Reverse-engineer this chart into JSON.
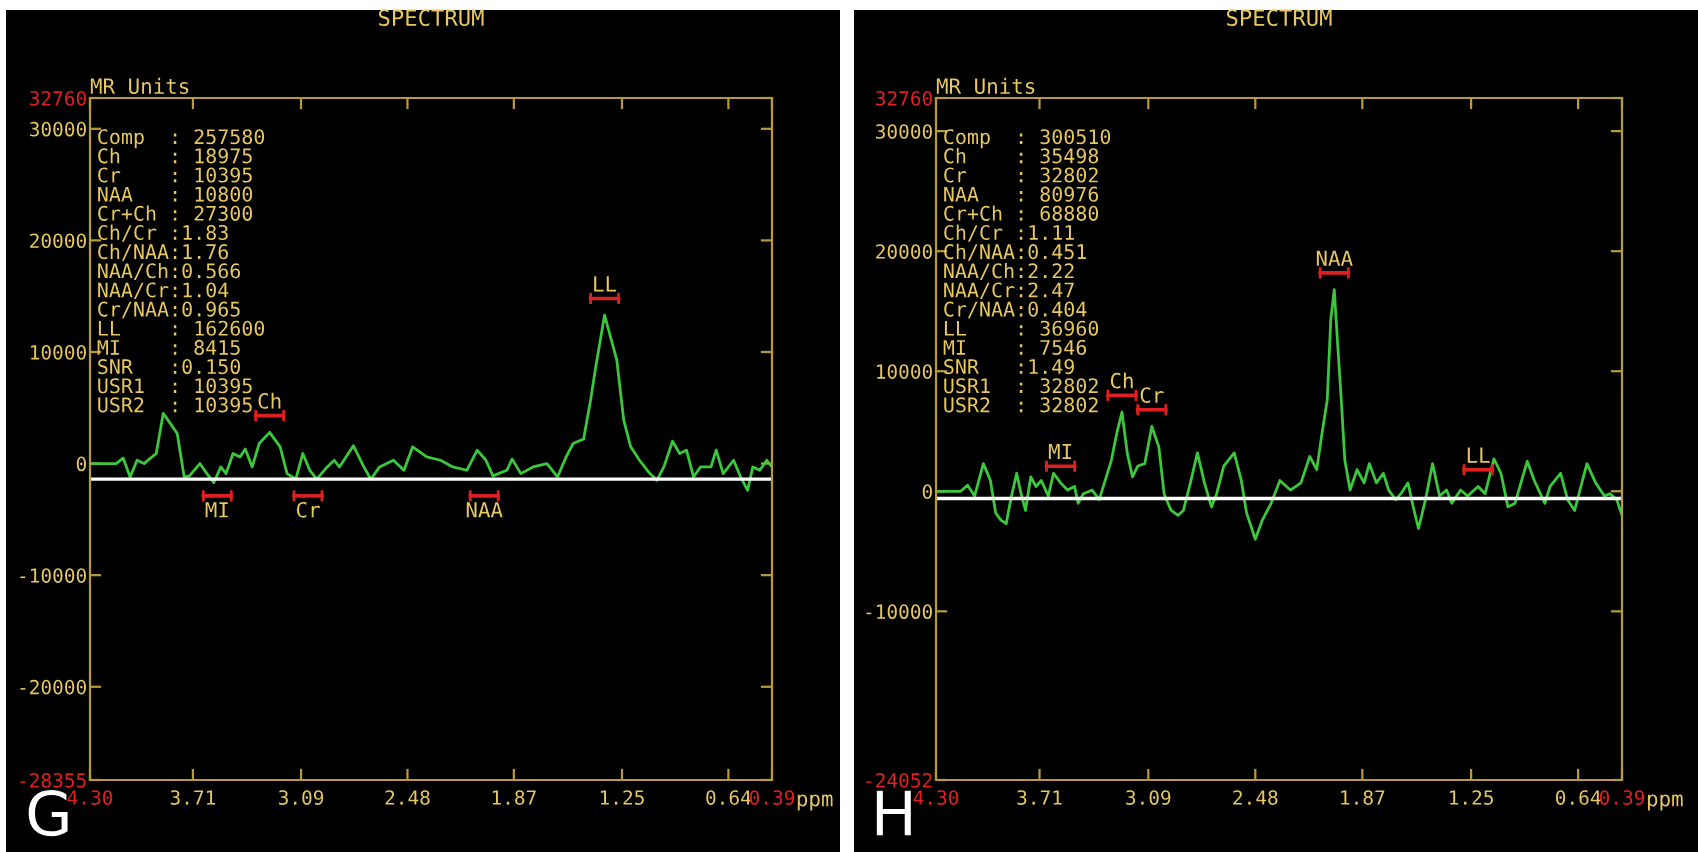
{
  "chart_data": [
    {
      "type": "line",
      "title": "SPECTRUM",
      "xlabel": "ppm",
      "ylabel": "MR Units",
      "grid": false,
      "marker": "none",
      "line_style": "solid",
      "xlim": [
        4.3,
        0.39
      ],
      "xticks": [
        {
          "value": 4.3,
          "label": "4.30"
        },
        3.71,
        3.09,
        2.48,
        1.87,
        1.25,
        0.64,
        0.39
      ],
      "ylim": [
        -28355,
        32760
      ],
      "yticks": [
        -28355,
        -20000,
        -10000,
        0,
        10000,
        20000,
        30000,
        32760
      ],
      "ref_lines": [
        {
          "axis": "y",
          "value": -1400,
          "color": "#ffffff"
        }
      ],
      "annotations": [
        "Comp  : 257580\nCh    : 18975\nCr    : 10395\nNAA   : 10800\nCr+Ch : 27300\nCh/Cr :1.83\nCh/NAA:1.76\nNAA/Ch:0.566\nNAA/Cr:1.04\nCr/NAA:0.965\nLL    : 162600\nMI    : 8415\nSNR   :0.150\nUSR1  : 10395\nUSR2  : 10395",
        "G",
        {
          "text": "Ch",
          "x": 3.27,
          "y": 2800
        },
        {
          "text": "MI",
          "x": 3.57,
          "y": -1400
        },
        {
          "text": "Cr",
          "x": 3.05,
          "y": -1400
        },
        {
          "text": "NAA",
          "x": 2.04,
          "y": -1400
        },
        {
          "text": "LL",
          "x": 1.35,
          "y": 13300
        }
      ],
      "series": [
        {
          "color": "#3cc83c",
          "x": [
            4.3,
            4.15,
            4.11,
            4.07,
            4.03,
            3.99,
            3.96,
            3.92,
            3.88,
            3.84,
            3.8,
            3.76,
            3.73,
            3.67,
            3.63,
            3.59,
            3.55,
            3.52,
            3.48,
            3.44,
            3.41,
            3.37,
            3.33,
            3.27,
            3.21,
            3.17,
            3.12,
            3.08,
            3.04,
            3.0,
            2.94,
            2.9,
            2.87,
            2.79,
            2.73,
            2.69,
            2.64,
            2.56,
            2.5,
            2.45,
            2.37,
            2.29,
            2.22,
            2.14,
            2.08,
            2.03,
            1.99,
            1.91,
            1.88,
            1.83,
            1.76,
            1.68,
            1.62,
            1.57,
            1.53,
            1.47,
            1.43,
            1.4,
            1.35,
            1.28,
            1.24,
            1.2,
            1.15,
            1.09,
            1.05,
            1.01,
            0.96,
            0.92,
            0.88,
            0.84,
            0.8,
            0.74,
            0.71,
            0.67,
            0.61,
            0.57,
            0.53,
            0.5,
            0.46,
            0.42,
            0.39
          ],
          "values": [
            0,
            0,
            500,
            -1200,
            300,
            0,
            400,
            900,
            4500,
            3600,
            2700,
            -1200,
            -1100,
            0,
            -900,
            -1700,
            -300,
            -900,
            900,
            600,
            1300,
            -300,
            1800,
            2800,
            1500,
            -900,
            -1400,
            900,
            -600,
            -1400,
            -300,
            300,
            -300,
            1600,
            -300,
            -1400,
            -300,
            300,
            -600,
            1500,
            600,
            300,
            -300,
            -600,
            1200,
            300,
            -1100,
            -600,
            400,
            -900,
            -300,
            0,
            -1200,
            600,
            1800,
            2200,
            5700,
            8700,
            13300,
            9300,
            3900,
            1500,
            300,
            -900,
            -1500,
            -300,
            2000,
            900,
            1200,
            -1200,
            -300,
            -300,
            1200,
            -900,
            300,
            -1200,
            -2400,
            -300,
            -600,
            300,
            -300
          ]
        }
      ]
    },
    {
      "type": "line",
      "title": "SPECTRUM",
      "xlabel": "ppm",
      "ylabel": "MR Units",
      "grid": false,
      "marker": "none",
      "line_style": "solid",
      "xlim": [
        4.3,
        0.39
      ],
      "xticks": [
        {
          "value": 4.3,
          "label": "4.30"
        },
        3.71,
        3.09,
        2.48,
        1.87,
        1.25,
        0.64,
        0.39
      ],
      "ylim": [
        -24052,
        32760
      ],
      "yticks": [
        -24052,
        -10000,
        0,
        10000,
        20000,
        30000,
        32760
      ],
      "ref_lines": [
        {
          "axis": "y",
          "value": -600,
          "color": "#ffffff"
        }
      ],
      "annotations": [
        "Comp  : 300510\nCh    : 35498\nCr    : 32802\nNAA   : 80976\nCr+Ch : 68880\nCh/Cr :1.11\nCh/NAA:0.451\nNAA/Ch:2.22\nNAA/Cr:2.47\nCr/NAA:0.404\nLL    : 36960\nMI    : 7546\nSNR   :1.49\nUSR1  : 32802\nUSR2  : 32802",
        "H",
        {
          "text": "MI",
          "x": 3.59,
          "y": 700
        },
        {
          "text": "Ch",
          "x": 3.24,
          "y": 6600
        },
        {
          "text": "Cr",
          "x": 3.07,
          "y": 5400
        },
        {
          "text": "NAA",
          "x": 2.03,
          "y": 16800
        },
        {
          "text": "LL",
          "x": 1.21,
          "y": 400
        }
      ],
      "series": [
        {
          "color": "#3cc83c",
          "x": [
            4.3,
            4.16,
            4.12,
            4.08,
            4.03,
            3.99,
            3.96,
            3.93,
            3.9,
            3.87,
            3.84,
            3.82,
            3.79,
            3.76,
            3.73,
            3.7,
            3.66,
            3.63,
            3.59,
            3.55,
            3.51,
            3.49,
            3.46,
            3.41,
            3.37,
            3.34,
            3.3,
            3.27,
            3.24,
            3.21,
            3.18,
            3.15,
            3.11,
            3.07,
            3.03,
            3.0,
            2.96,
            2.92,
            2.89,
            2.85,
            2.81,
            2.77,
            2.73,
            2.7,
            2.66,
            2.6,
            2.56,
            2.53,
            2.48,
            2.44,
            2.39,
            2.34,
            2.28,
            2.22,
            2.17,
            2.13,
            2.1,
            2.07,
            2.05,
            2.03,
            2.01,
            1.99,
            1.97,
            1.94,
            1.9,
            1.86,
            1.83,
            1.79,
            1.75,
            1.72,
            1.68,
            1.65,
            1.61,
            1.58,
            1.55,
            1.51,
            1.47,
            1.43,
            1.39,
            1.36,
            1.31,
            1.27,
            1.21,
            1.17,
            1.12,
            1.08,
            1.04,
            1.0,
            0.93,
            0.89,
            0.83,
            0.8,
            0.74,
            0.7,
            0.66,
            0.59,
            0.54,
            0.49,
            0.46,
            0.42,
            0.39
          ],
          "values": [
            0,
            0,
            500,
            -400,
            2300,
            900,
            -1800,
            -2400,
            -2700,
            -400,
            1500,
            100,
            -1600,
            1200,
            400,
            900,
            -400,
            1500,
            700,
            100,
            400,
            -1000,
            -200,
            100,
            -700,
            700,
            2600,
            4800,
            6600,
            3200,
            1200,
            2100,
            2300,
            5400,
            3700,
            -200,
            -1600,
            -2000,
            -1600,
            700,
            3200,
            700,
            -1300,
            -200,
            2100,
            3200,
            900,
            -1800,
            -4000,
            -2400,
            -1000,
            900,
            100,
            700,
            2900,
            1800,
            4800,
            7600,
            14300,
            16800,
            12100,
            7600,
            2600,
            100,
            1800,
            700,
            2300,
            700,
            1500,
            100,
            -700,
            -200,
            700,
            -1300,
            -3100,
            -700,
            2300,
            -400,
            100,
            -1000,
            100,
            -400,
            400,
            -200,
            2700,
            1500,
            -1300,
            -1000,
            2500,
            900,
            -1000,
            400,
            1500,
            -700,
            -1600,
            2300,
            700,
            -400,
            -200,
            -700,
            -2000
          ]
        }
      ]
    }
  ]
}
